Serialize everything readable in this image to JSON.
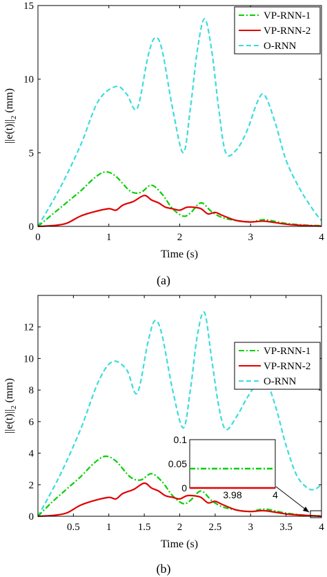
{
  "chart_data": [
    {
      "type": "line",
      "caption": "(a)",
      "xlabel": "Time (s)",
      "ylabel_main": "||e(t)||",
      "ylabel_sub": "2",
      "ylabel_unit": "(mm)",
      "xlim": [
        0,
        4
      ],
      "ylim": [
        0,
        15
      ],
      "xticks": [
        0,
        1,
        2,
        3,
        4
      ],
      "yticks": [
        0,
        5,
        10,
        15
      ],
      "grid": false,
      "legend": "top-right",
      "series": [
        {
          "name": "VP-RNN-1",
          "color": "#00d000",
          "dash": "dashdot",
          "x": [
            0,
            0.2,
            0.4,
            0.6,
            0.8,
            0.95,
            1.1,
            1.3,
            1.45,
            1.6,
            1.75,
            1.9,
            2.05,
            2.15,
            2.3,
            2.45,
            2.6,
            2.8,
            3.0,
            3.2,
            3.5,
            3.8,
            4.0
          ],
          "y": [
            0,
            0.8,
            1.6,
            2.4,
            3.3,
            3.7,
            3.4,
            2.4,
            2.3,
            2.8,
            2.2,
            1.2,
            0.7,
            0.9,
            1.6,
            1.0,
            0.6,
            0.4,
            0.3,
            0.45,
            0.2,
            0.08,
            0.05
          ]
        },
        {
          "name": "VP-RNN-2",
          "color": "#e00000",
          "dash": "solid",
          "x": [
            0,
            0.2,
            0.4,
            0.6,
            0.8,
            1.0,
            1.1,
            1.2,
            1.35,
            1.5,
            1.6,
            1.7,
            1.8,
            1.9,
            2.0,
            2.1,
            2.2,
            2.3,
            2.4,
            2.5,
            2.6,
            2.8,
            3.0,
            3.2,
            3.5,
            3.8,
            4.0
          ],
          "y": [
            0,
            0.05,
            0.2,
            0.7,
            1.0,
            1.2,
            1.1,
            1.45,
            1.7,
            2.1,
            1.8,
            1.6,
            1.3,
            1.2,
            1.1,
            1.3,
            1.3,
            1.2,
            0.85,
            0.95,
            0.75,
            0.4,
            0.3,
            0.35,
            0.15,
            0.05,
            0.02
          ]
        },
        {
          "name": "O-RNN",
          "color": "#3cdcdc",
          "dash": "dashed",
          "x": [
            0,
            0.3,
            0.6,
            0.85,
            1.1,
            1.25,
            1.4,
            1.55,
            1.65,
            1.75,
            1.9,
            2.05,
            2.15,
            2.25,
            2.35,
            2.45,
            2.55,
            2.65,
            2.8,
            2.95,
            3.1,
            3.2,
            3.35,
            3.5,
            3.7,
            3.9,
            4.0
          ],
          "y": [
            0,
            2.5,
            5.5,
            8.5,
            9.5,
            9.0,
            8.0,
            11.5,
            12.8,
            12.0,
            8.0,
            5.0,
            8.0,
            12.0,
            14.1,
            12.0,
            8.0,
            5.0,
            5.2,
            6.5,
            8.5,
            8.9,
            7.0,
            4.5,
            2.5,
            1.0,
            0.4
          ]
        }
      ]
    },
    {
      "type": "line",
      "caption": "(b)",
      "xlabel": "Time (s)",
      "ylabel_main": "||e(t)||",
      "ylabel_sub": "2",
      "ylabel_unit": "(mm)",
      "xlim": [
        0,
        4
      ],
      "ylim": [
        0,
        14
      ],
      "xticks": [
        0.5,
        1,
        1.5,
        2,
        2.5,
        3,
        3.5,
        4
      ],
      "yticks": [
        0,
        2,
        4,
        6,
        8,
        10,
        12
      ],
      "grid": false,
      "legend": "top-right",
      "series": [
        {
          "name": "VP-RNN-1",
          "color": "#00d000",
          "dash": "dashdot",
          "x": [
            0,
            0.2,
            0.4,
            0.6,
            0.8,
            0.95,
            1.1,
            1.3,
            1.45,
            1.6,
            1.75,
            1.9,
            2.05,
            2.15,
            2.3,
            2.45,
            2.6,
            2.8,
            3.0,
            3.2,
            3.5,
            3.8,
            4.0
          ],
          "y": [
            0,
            0.9,
            1.7,
            2.5,
            3.4,
            3.8,
            3.5,
            2.5,
            2.3,
            2.7,
            2.2,
            1.3,
            0.8,
            1.0,
            1.6,
            1.0,
            0.6,
            0.4,
            0.3,
            0.45,
            0.2,
            0.05,
            0.04
          ]
        },
        {
          "name": "VP-RNN-2",
          "color": "#e00000",
          "dash": "solid",
          "x": [
            0,
            0.2,
            0.4,
            0.6,
            0.8,
            1.0,
            1.1,
            1.2,
            1.35,
            1.5,
            1.6,
            1.7,
            1.8,
            1.9,
            2.0,
            2.1,
            2.2,
            2.3,
            2.4,
            2.5,
            2.6,
            2.8,
            3.0,
            3.2,
            3.5,
            3.8,
            4.0
          ],
          "y": [
            0,
            0.05,
            0.2,
            0.7,
            1.0,
            1.2,
            1.1,
            1.45,
            1.7,
            2.1,
            1.8,
            1.6,
            1.3,
            1.2,
            1.1,
            1.3,
            1.3,
            1.2,
            0.85,
            0.95,
            0.75,
            0.4,
            0.3,
            0.35,
            0.15,
            0.05,
            0.0
          ]
        },
        {
          "name": "O-RNN",
          "color": "#3cdcdc",
          "dash": "dashed",
          "x": [
            0,
            0.3,
            0.6,
            0.85,
            1.05,
            1.25,
            1.4,
            1.55,
            1.65,
            1.75,
            1.9,
            2.05,
            2.15,
            2.25,
            2.35,
            2.45,
            2.55,
            2.65,
            2.8,
            2.95,
            3.1,
            3.2,
            3.35,
            3.5,
            3.65,
            3.8,
            3.9,
            4.0
          ],
          "y": [
            0,
            2.5,
            5.5,
            8.5,
            9.8,
            9.3,
            7.8,
            11.0,
            12.4,
            11.5,
            8.0,
            5.6,
            8.0,
            11.5,
            12.9,
            10.0,
            7.0,
            5.5,
            6.3,
            7.5,
            8.5,
            8.8,
            7.0,
            4.5,
            2.6,
            1.8,
            1.7,
            2.0
          ]
        }
      ],
      "inset": {
        "xlim": [
          3.96,
          4.0
        ],
        "ylim": [
          0,
          0.1
        ],
        "xticks": [
          3.98,
          4
        ],
        "yticks": [
          0,
          0.05,
          0.1
        ],
        "series": [
          {
            "name": "VP-RNN-1",
            "x": [
              3.96,
              4.0
            ],
            "y": [
              0.04,
              0.04
            ]
          },
          {
            "name": "VP-RNN-2",
            "x": [
              3.96,
              4.0
            ],
            "y": [
              0.0,
              0.0
            ]
          }
        ]
      }
    }
  ]
}
